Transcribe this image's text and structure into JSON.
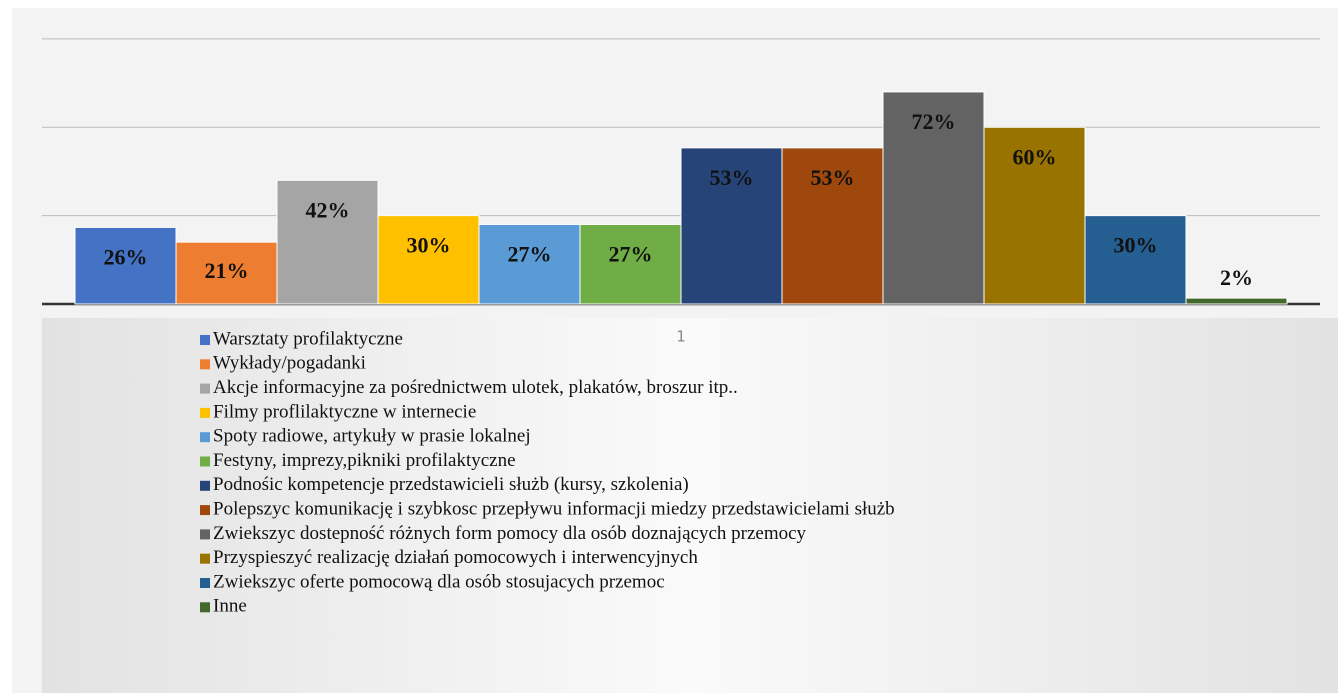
{
  "chart_data": {
    "type": "bar",
    "categories": [
      "1"
    ],
    "ylim": [
      0,
      92
    ],
    "yticks": [
      0,
      30,
      60,
      90
    ],
    "grid": true,
    "series": [
      {
        "name": "Warsztaty profilaktyczne",
        "color": "#4472c4",
        "values": [
          26
        ],
        "value_labels": [
          "26%"
        ]
      },
      {
        "name": "Wykłady/pogadanki",
        "color": "#ed7d31",
        "values": [
          21
        ],
        "value_labels": [
          "21%"
        ]
      },
      {
        "name": "Akcje informacyjne za pośrednictwem ulotek, plakatów, broszur itp..",
        "color": "#a5a5a5",
        "values": [
          42
        ],
        "value_labels": [
          "42%"
        ]
      },
      {
        "name": "Filmy proflilaktyczne w internecie",
        "color": "#ffc000",
        "values": [
          30
        ],
        "value_labels": [
          "30%"
        ]
      },
      {
        "name": "Spoty radiowe, artykuły w prasie lokalnej",
        "color": "#5b9bd5",
        "values": [
          27
        ],
        "value_labels": [
          "27%"
        ]
      },
      {
        "name": "Festyny, imprezy,pikniki profilaktyczne",
        "color": "#70ad47",
        "values": [
          27
        ],
        "value_labels": [
          "27%"
        ]
      },
      {
        "name": "Podnośic kompetencje przedstawicieli służb (kursy, szkolenia)",
        "color": "#264478",
        "values": [
          53
        ],
        "value_labels": [
          "53%"
        ]
      },
      {
        "name": "Polepszyc komunikację i szybkosc przepływu informacji miedzy przedstawicielami służb",
        "color": "#9e480e",
        "values": [
          53
        ],
        "value_labels": [
          "53%"
        ]
      },
      {
        "name": "Zwiekszyc dostepność różnych form pomocy dla osób doznających przemocy",
        "color": "#636363",
        "values": [
          72
        ],
        "value_labels": [
          "72%"
        ]
      },
      {
        "name": "Przyspieszyć realizację działań pomocowych i interwencyjnych",
        "color": "#997300",
        "values": [
          60
        ],
        "value_labels": [
          "60%"
        ]
      },
      {
        "name": "Zwiekszyc oferte pomocową dla osób stosujacych przemoc",
        "color": "#255e91",
        "values": [
          30
        ],
        "value_labels": [
          "30%"
        ]
      },
      {
        "name": "Inne",
        "color": "#43682b",
        "values": [
          2
        ],
        "value_labels": [
          "2%"
        ]
      }
    ]
  }
}
